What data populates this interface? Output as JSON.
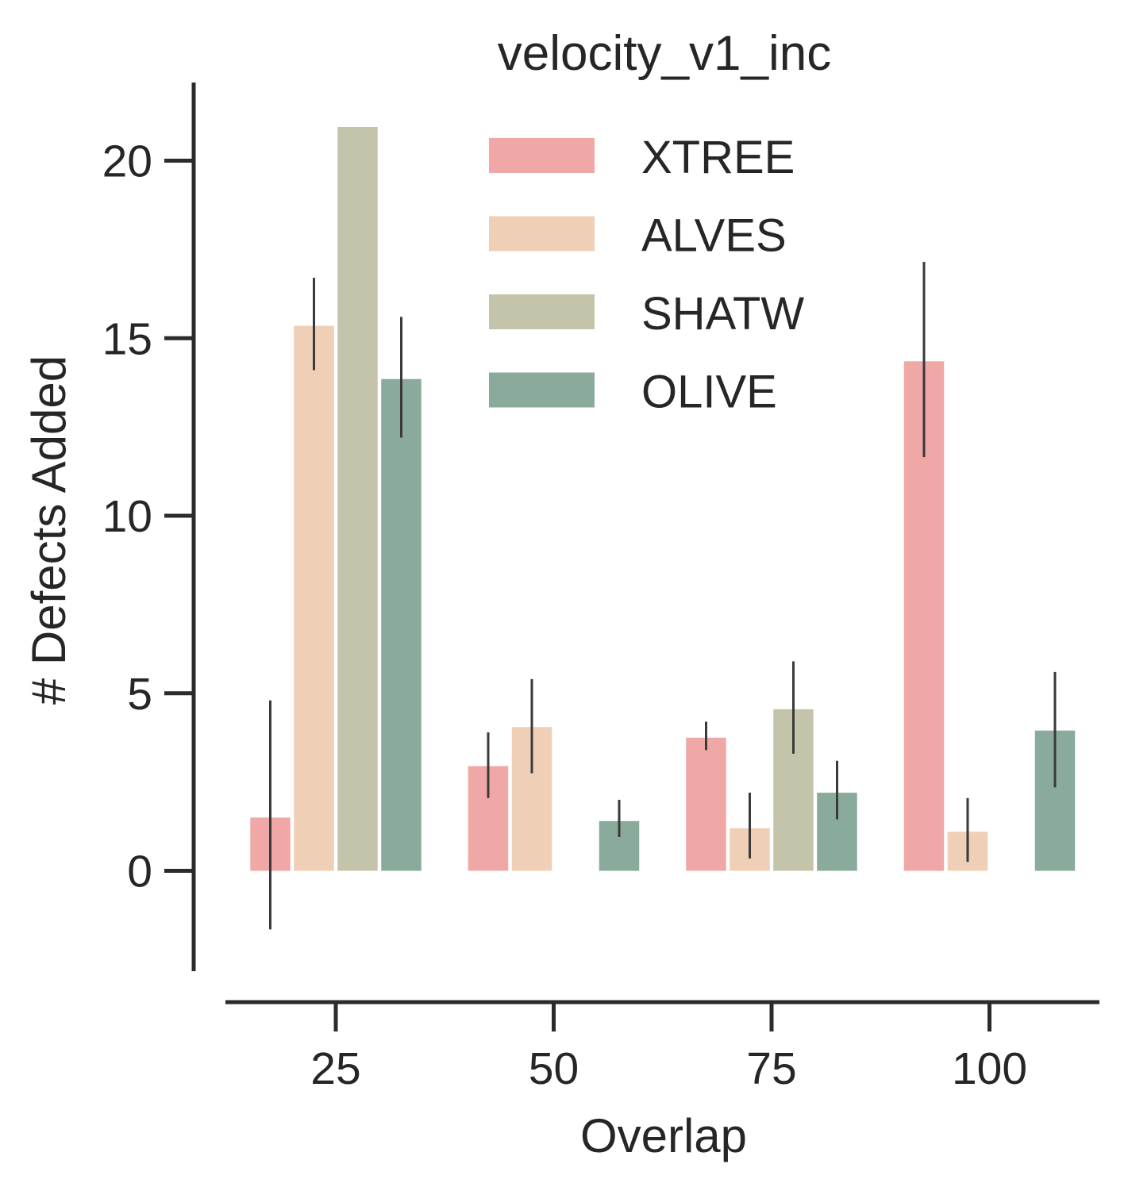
{
  "chart_data": {
    "type": "bar",
    "title": "velocity_v1_inc",
    "xlabel": "Overlap",
    "ylabel": "# Defects Added",
    "categories": [
      "25",
      "50",
      "75",
      "100"
    ],
    "ylim": [
      -2.8,
      22.2
    ],
    "yticks": [
      "0",
      "5",
      "10",
      "15",
      "20"
    ],
    "legend_position": "upper-center",
    "grid": false,
    "series": [
      {
        "name": "XTREE",
        "color": "#f0a8a6",
        "values": [
          1.5,
          2.95,
          3.75,
          14.35
        ],
        "error_low": [
          -1.65,
          2.05,
          3.4,
          11.65
        ],
        "error_high": [
          4.8,
          3.9,
          4.2,
          17.15
        ]
      },
      {
        "name": "ALVES",
        "color": "#efcfb6",
        "values": [
          15.35,
          4.05,
          1.2,
          1.1
        ],
        "error_low": [
          14.1,
          2.75,
          0.35,
          0.25
        ],
        "error_high": [
          16.7,
          5.4,
          2.2,
          2.05
        ]
      },
      {
        "name": "SHATW",
        "color": "#c4c4ab",
        "values": [
          20.95,
          0,
          4.55,
          0
        ],
        "error_low": [
          null,
          null,
          3.3,
          null
        ],
        "error_high": [
          null,
          null,
          5.9,
          null
        ]
      },
      {
        "name": "OLIVE",
        "color": "#8aab9b",
        "values": [
          13.85,
          1.4,
          2.2,
          3.95
        ],
        "error_low": [
          12.2,
          0.95,
          1.45,
          2.35
        ],
        "error_high": [
          15.6,
          2.0,
          3.1,
          5.6
        ]
      }
    ]
  }
}
